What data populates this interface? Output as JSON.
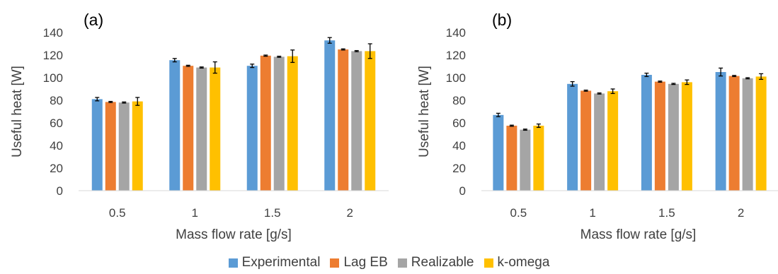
{
  "colors": {
    "Experimental": "#5B9BD5",
    "Lag EB": "#ED7D31",
    "Realizable": "#A5A5A5",
    "k-omega": "#FFC000",
    "axis": "#D9D9D9",
    "text": "#404040"
  },
  "legend": {
    "items": [
      "Experimental",
      "Lag EB",
      "Realizable",
      "k-omega"
    ]
  },
  "chart_data": [
    {
      "type": "bar",
      "panel_label": "(a)",
      "xlabel": "Mass flow rate [g/s]",
      "ylabel": "Useful heat [W]",
      "categories": [
        "0.5",
        "1",
        "1.5",
        "2"
      ],
      "ylim": [
        0,
        140
      ],
      "yticks": [
        "0",
        "20",
        "40",
        "60",
        "80",
        "100",
        "120",
        "140"
      ],
      "grid": false,
      "legend_position": "bottom",
      "series": [
        {
          "name": "Experimental",
          "values": [
            81,
            115.5,
            110.5,
            133
          ],
          "errors": [
            1.5,
            1.5,
            1.5,
            2.5
          ]
        },
        {
          "name": "Lag EB",
          "values": [
            78.5,
            110.5,
            119.5,
            125
          ],
          "errors": [
            0.5,
            0.5,
            0.5,
            0.5
          ]
        },
        {
          "name": "Realizable",
          "values": [
            78,
            109,
            118.5,
            123.5
          ],
          "errors": [
            0.5,
            0.5,
            0.5,
            0.5
          ]
        },
        {
          "name": "k-omega",
          "values": [
            79,
            109,
            119,
            123.5
          ],
          "errors": [
            3.5,
            5,
            5.5,
            6.5
          ]
        }
      ]
    },
    {
      "type": "bar",
      "panel_label": "(b)",
      "xlabel": "Mass flow rate [g/s]",
      "ylabel": "Useful heat [W]",
      "categories": [
        "0.5",
        "1",
        "1.5",
        "2"
      ],
      "ylim": [
        0,
        140
      ],
      "yticks": [
        "0",
        "20",
        "40",
        "60",
        "80",
        "100",
        "120",
        "140"
      ],
      "grid": false,
      "legend_position": "bottom",
      "series": [
        {
          "name": "Experimental",
          "values": [
            67,
            94.5,
            102.5,
            105
          ],
          "errors": [
            1.5,
            2,
            1.5,
            3.5
          ]
        },
        {
          "name": "Lag EB",
          "values": [
            57.5,
            88.5,
            96.5,
            101.5
          ],
          "errors": [
            0.5,
            0.5,
            0.5,
            0.5
          ]
        },
        {
          "name": "Realizable",
          "values": [
            54,
            86,
            94.5,
            99.5
          ],
          "errors": [
            0.5,
            0.5,
            0.5,
            0.5
          ]
        },
        {
          "name": "k-omega",
          "values": [
            57.5,
            88,
            96,
            101
          ],
          "errors": [
            1.5,
            2,
            2,
            2.5
          ]
        }
      ]
    }
  ]
}
